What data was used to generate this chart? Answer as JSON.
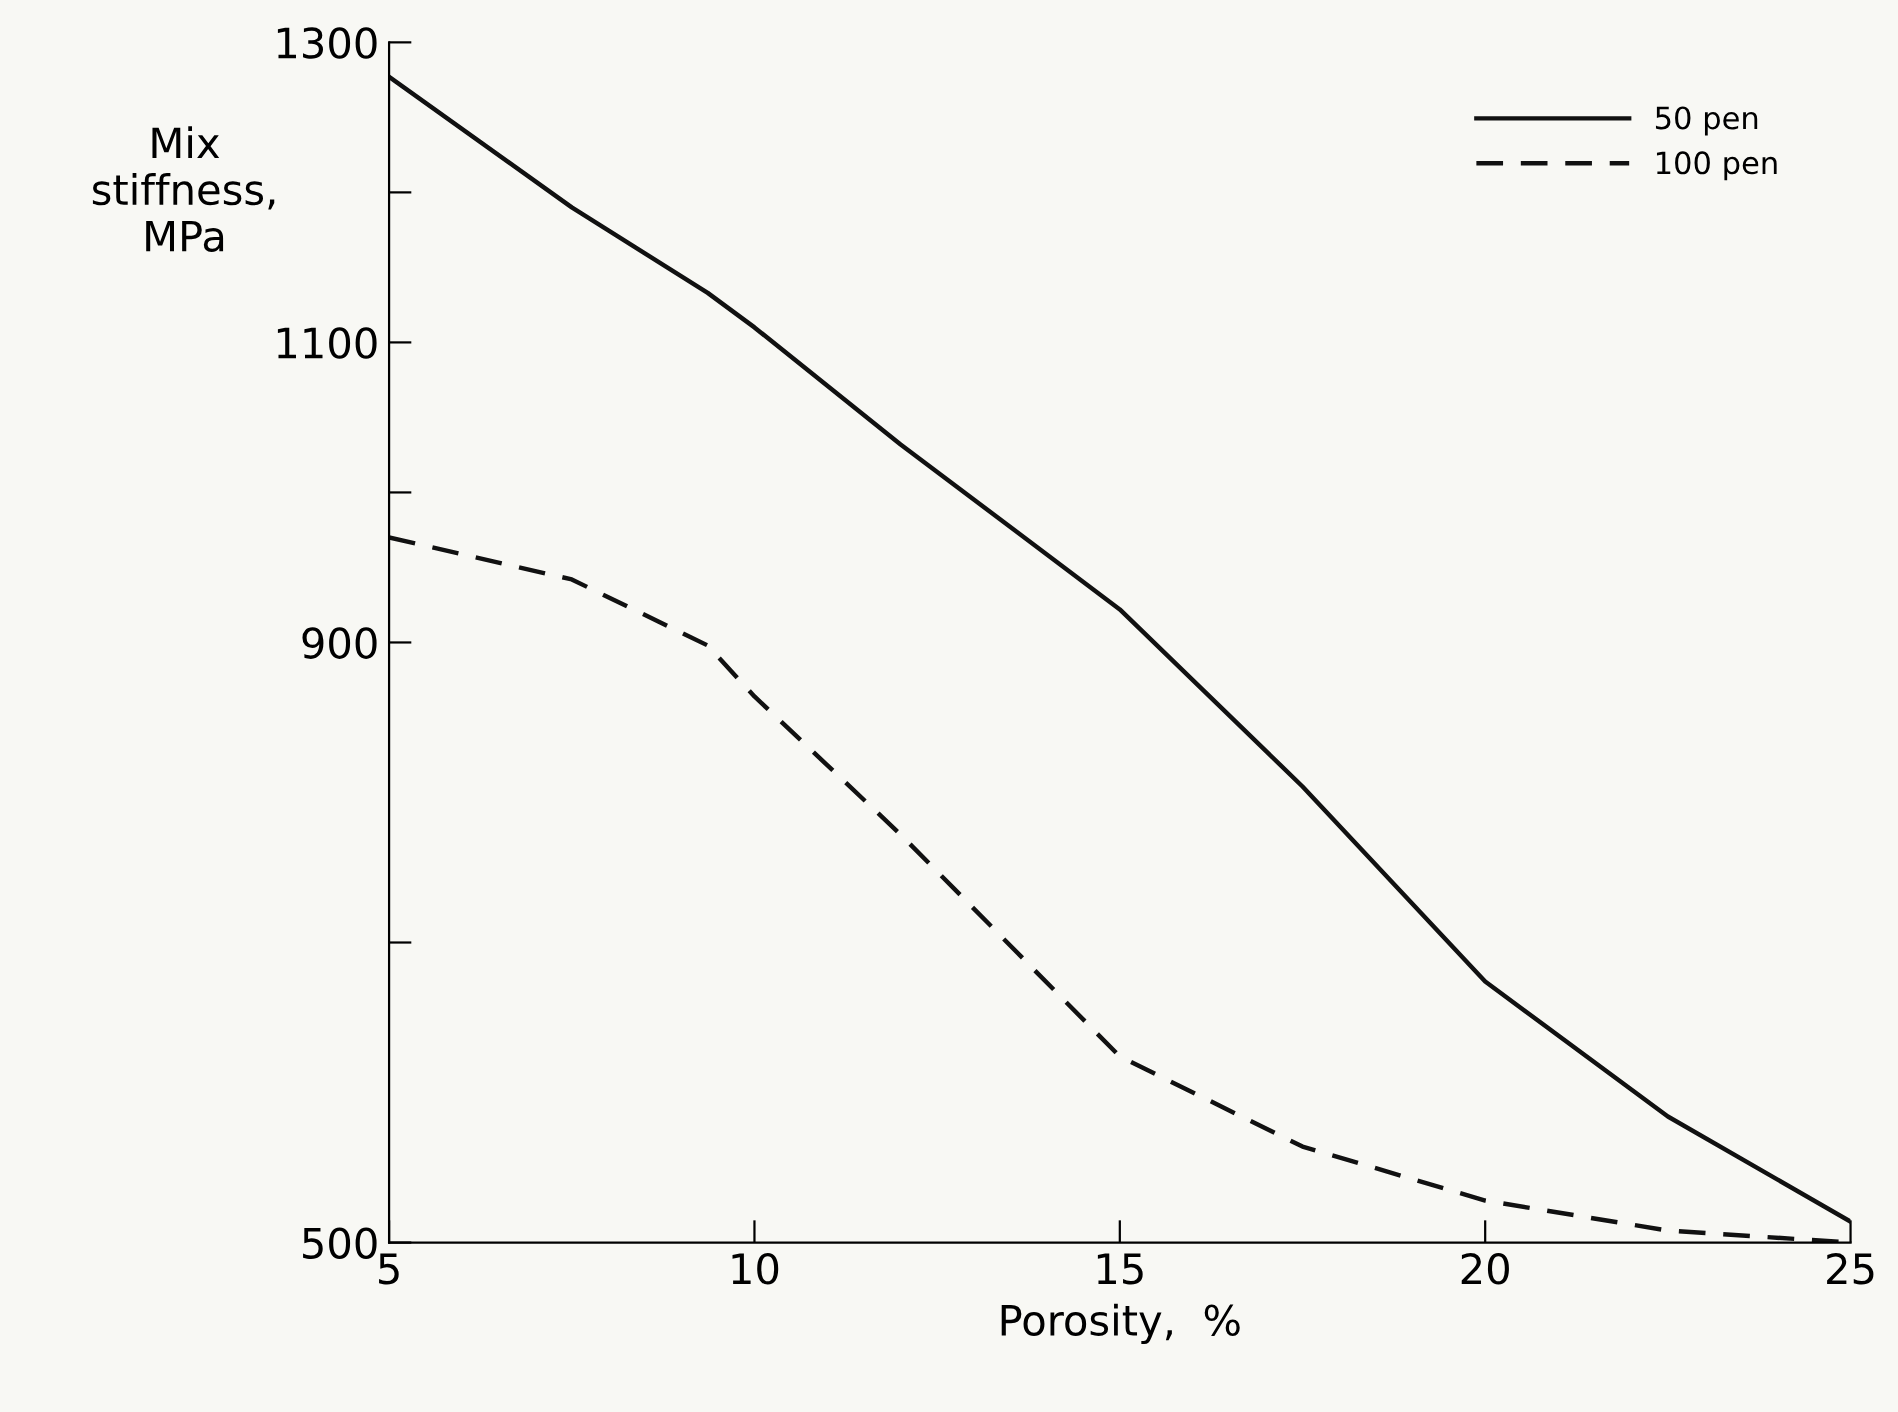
{
  "chart_data": {
    "type": "line",
    "xlabel": "Porosity,  %",
    "ylabel": "Mix\nstiffness,\nMPa",
    "series": [
      {
        "name": "50 pen",
        "color": "#111111",
        "line_style": "solid",
        "x": [
          5,
          7.5,
          9.36,
          10,
          12,
          15,
          17.5,
          20,
          22.5,
          25
        ],
        "values": [
          1277,
          1190,
          1133,
          1110,
          1032,
          922,
          804,
          674,
          584,
          514
        ]
      },
      {
        "name": "100 pen",
        "color": "#111111",
        "line_style": "dashed",
        "x": [
          5,
          7.5,
          9.36,
          10,
          12,
          15,
          17.5,
          20,
          22.5,
          25
        ],
        "values": [
          970,
          942,
          898,
          864,
          772,
          624,
          564,
          528,
          508,
          500
        ]
      }
    ],
    "xlim": [
      5,
      25
    ],
    "ylim": [
      500,
      1300
    ],
    "xticks": [
      5,
      10,
      15,
      20,
      25
    ],
    "yticks": [
      500,
      {
        "value": 700,
        "label": null
      },
      900,
      {
        "value": 1000,
        "label": null
      },
      1100,
      {
        "value": 1200,
        "label": null
      },
      1300
    ],
    "grid": false,
    "legend": "top right",
    "marker": "none"
  }
}
